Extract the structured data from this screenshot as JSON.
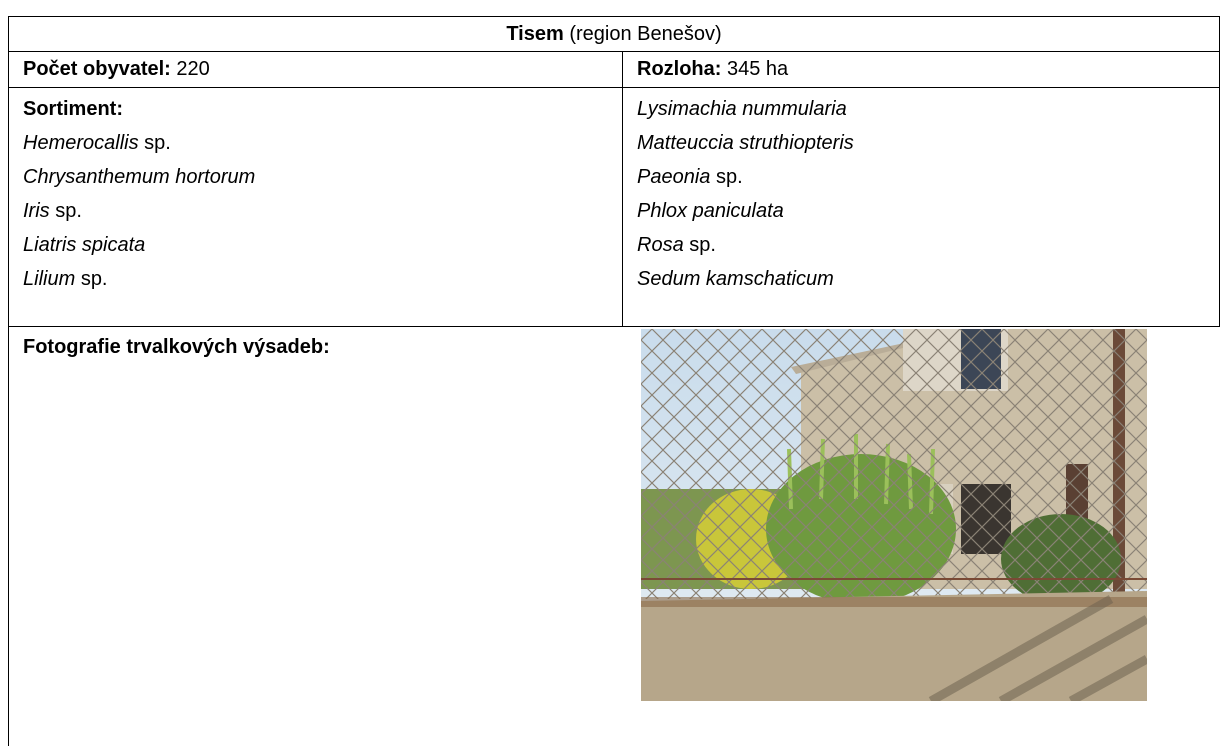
{
  "table": {
    "title": {
      "name": "Tisem",
      "region": "(region Benešov)"
    },
    "population": {
      "label": "Počet obyvatel:",
      "value": "220"
    },
    "area": {
      "label": "Rozloha:",
      "value": "345 ha"
    },
    "assortment_label": "Sortiment:",
    "plants_left": [
      {
        "name": "Hemerocallis",
        "suffix": "sp."
      },
      {
        "name": "Chrysanthemum hortorum"
      },
      {
        "name": "Iris",
        "suffix": "sp."
      },
      {
        "name": "Liatris spicata"
      },
      {
        "name": "Lilium",
        "suffix": "sp."
      }
    ],
    "plants_right": [
      {
        "name": "Lysimachia nummularia"
      },
      {
        "name": "Matteuccia struthiopteris"
      },
      {
        "name": "Paeonia",
        "suffix": "sp."
      },
      {
        "name": "Phlox paniculata"
      },
      {
        "name": "Rosa",
        "suffix": "sp."
      },
      {
        "name": "Sedum kamschaticum"
      }
    ],
    "photo_label": "Fotografie trvalkových výsadeb:"
  }
}
